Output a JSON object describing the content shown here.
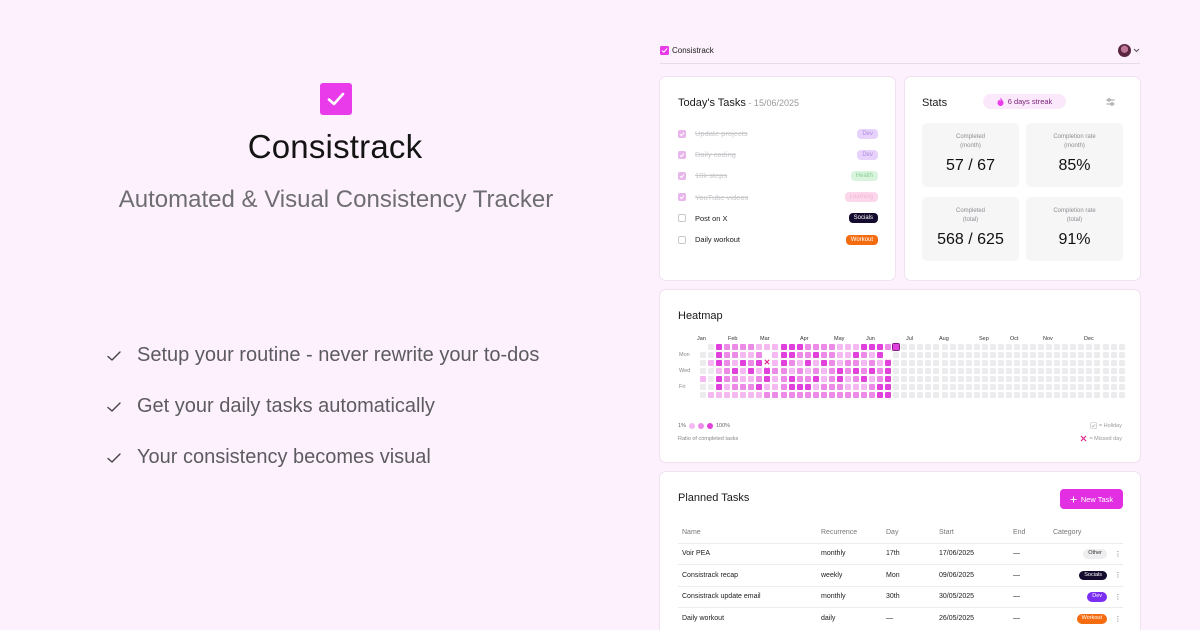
{
  "hero": {
    "title": "Consistrack",
    "tagline": "Automated & Visual Consistency Tracker",
    "features": [
      "Setup your routine - never rewrite your to-dos",
      "Get your daily tasks automatically",
      "Your consistency becomes visual"
    ]
  },
  "topbar": {
    "brand": "Consistrack",
    "avatar_icon": "user-avatar",
    "menu_icon": "chevron-down-icon"
  },
  "today": {
    "title": "Today's Tasks",
    "date": " - 15/06/2025",
    "tasks": [
      {
        "name": "Update projects",
        "done": true,
        "tag": "Dev",
        "tag_bg": "#e6d2fb",
        "tag_fg": "#b18de0"
      },
      {
        "name": "Daily coding",
        "done": true,
        "tag": "Dev",
        "tag_bg": "#e6d2fb",
        "tag_fg": "#b18de0"
      },
      {
        "name": "10k steps",
        "done": true,
        "tag": "Health",
        "tag_bg": "#d8f4dd",
        "tag_fg": "#8dcf99"
      },
      {
        "name": "YouTube videos",
        "done": true,
        "tag": "Learning",
        "tag_bg": "#fcd6ea",
        "tag_fg": "#f2b6d7"
      },
      {
        "name": "Post on X",
        "done": false,
        "tag": "Socials",
        "tag_bg": "#150b2e",
        "tag_fg": "#ffffff"
      },
      {
        "name": "Daily workout",
        "done": false,
        "tag": "Workout",
        "tag_bg": "#f56c10",
        "tag_fg": "#ffffff"
      }
    ]
  },
  "stats": {
    "title": "Stats",
    "streak": "6 days streak",
    "cards": [
      {
        "label": "Completed\n(month)",
        "value": "57 / 67"
      },
      {
        "label": "Completion rate\n(month)",
        "value": "85%"
      },
      {
        "label": "Completed\n(total)",
        "value": "568 / 625"
      },
      {
        "label": "Completion rate\n(total)",
        "value": "91%"
      }
    ]
  },
  "heatmap": {
    "title": "Heatmap",
    "months": [
      "Jan",
      "Feb",
      "Mar",
      "Apr",
      "May",
      "Jun",
      "Jul",
      "Aug",
      "Sep",
      "Oct",
      "Nov",
      "Dec"
    ],
    "day_labels": [
      "Mon",
      "Wed",
      "Fri"
    ],
    "legend_min": "1%",
    "legend_max": "100%",
    "legend_caption": "Ratio of completed tasks",
    "holiday_label": "= Holiday",
    "missed_label": "= Missed day",
    "colors": {
      "empty": "#ececee",
      "low": "#f6b8f3",
      "mid": "#ec8ae8",
      "high": "#e040dc",
      "missed": "#e0278a"
    }
  },
  "planned": {
    "title": "Planned Tasks",
    "new_task": "New Task",
    "columns": [
      "Name",
      "Recurrence",
      "Day",
      "Start",
      "End",
      "Category"
    ],
    "rows": [
      {
        "name": "Voir PEA",
        "recurrence": "monthly",
        "day": "17th",
        "start": "17/06/2025",
        "end": "—",
        "category": "Other",
        "cat_bg": "#eeeef0",
        "cat_fg": "#333333"
      },
      {
        "name": "Consistrack recap",
        "recurrence": "weekly",
        "day": "Mon",
        "start": "09/06/2025",
        "end": "—",
        "category": "Socials",
        "cat_bg": "#150b2e",
        "cat_fg": "#ffffff"
      },
      {
        "name": "Consistrack update email",
        "recurrence": "monthly",
        "day": "30th",
        "start": "30/05/2025",
        "end": "—",
        "category": "Dev",
        "cat_bg": "#7b2ff2",
        "cat_fg": "#ffffff"
      },
      {
        "name": "Daily workout",
        "recurrence": "daily",
        "day": "—",
        "start": "26/05/2025",
        "end": "—",
        "category": "Workout",
        "cat_bg": "#f56c10",
        "cat_fg": "#ffffff"
      }
    ]
  }
}
